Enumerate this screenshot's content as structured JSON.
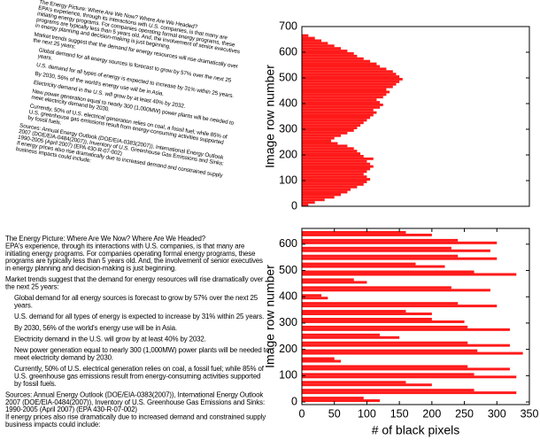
{
  "document": {
    "lines": [
      "The Energy Picture: Where Are We Now? Where Are We Headed?",
      "EPA's experience, through its interactions with U.S. companies, is that many are",
      "initiating energy programs. For companies operating formal energy programs, these",
      "programs are typically less than 5 years old. And, the involvement of senior executives",
      "in energy planning and decision-making is just beginning.",
      "Market trends suggest that the demand for energy resources will rise dramatically over",
      "the next 25 years:",
      "Global demand for all energy sources is forecast to grow by 57% over the next 25",
      "years.",
      "U.S. demand for all types of energy is expected to increase by 31% within 25 years.",
      "By 2030, 56% of the world's energy use will be in Asia.",
      "Electricity demand in the U.S. will grow by at least 40% by 2032.",
      "New power generation equal to nearly 300 (1,000MW) power plants will be needed to",
      "meet electricity demand by 2030.",
      "Currently, 50% of U.S. electrical generation relies on coal, a fossil fuel; while 85% of",
      "U.S. greenhouse gas emissions result from energy-consuming activities supported",
      "by fossil fuels.",
      "Sources: Annual Energy Outlook (DOE/EIA-0383(2007)), International Energy Outlook",
      "2007 (DOE/EIA-0484(2007)), Inventory of U.S. Greenhouse Gas Emissions and Sinks:",
      "1990-2005 (April 2007) (EPA 430-R-07-002)",
      "If energy prices also rise dramatically due to increased demand and constrained supply",
      "business impacts could include:"
    ]
  },
  "chart_data": [
    {
      "type": "barh",
      "ylabel": "Image row number",
      "color": "#ff1a1a",
      "rows": [
        0,
        10,
        20,
        30,
        40,
        50,
        60,
        70,
        80,
        90,
        100,
        110,
        120,
        130,
        140,
        150,
        160,
        170,
        180,
        190,
        200,
        210,
        220,
        230,
        240,
        250,
        260,
        270,
        280,
        290,
        300,
        310,
        320,
        330,
        340,
        350,
        360,
        370,
        380,
        390,
        400,
        410,
        420,
        430,
        440,
        450,
        460,
        470,
        480,
        490,
        500,
        510,
        520,
        530,
        540,
        550,
        560,
        570,
        580,
        590,
        600,
        610,
        620,
        630,
        640,
        650,
        660
      ],
      "values": [
        10,
        20,
        35,
        50,
        60,
        70,
        75,
        85,
        95,
        100,
        105,
        100,
        95,
        100,
        105,
        110,
        105,
        100,
        110,
        95,
        90,
        85,
        80,
        70,
        55,
        45,
        50,
        60,
        70,
        80,
        85,
        90,
        95,
        100,
        105,
        110,
        115,
        110,
        120,
        125,
        120,
        115,
        125,
        130,
        135,
        130,
        140,
        145,
        150,
        155,
        150,
        145,
        140,
        130,
        120,
        115,
        105,
        95,
        85,
        80,
        70,
        60,
        50,
        40,
        30,
        20,
        10
      ],
      "xlim": [
        0,
        350
      ],
      "ylim": [
        0,
        700
      ],
      "yticks": [
        0,
        100,
        200,
        300,
        400,
        500,
        600,
        700
      ]
    },
    {
      "type": "barh",
      "xlabel": "# of black pixels",
      "ylabel": "Image row number",
      "color": "#ff1a1a",
      "rows": [
        0,
        10,
        20,
        30,
        40,
        50,
        60,
        70,
        80,
        90,
        100,
        110,
        120,
        130,
        140,
        150,
        160,
        170,
        180,
        190,
        200,
        210,
        220,
        230,
        240,
        250,
        260,
        270,
        280,
        290,
        300,
        310,
        320,
        330,
        340,
        350,
        360,
        370,
        380,
        390,
        400,
        410,
        420,
        430,
        440,
        450,
        460,
        470,
        480,
        490,
        500,
        510,
        520,
        530,
        540,
        550,
        560,
        570,
        580,
        590,
        600,
        610,
        620,
        630,
        640,
        650
      ],
      "values": [
        120,
        95,
        0,
        330,
        265,
        0,
        200,
        160,
        0,
        330,
        265,
        0,
        320,
        255,
        0,
        60,
        50,
        0,
        340,
        270,
        0,
        320,
        255,
        0,
        150,
        120,
        0,
        320,
        255,
        0,
        250,
        200,
        0,
        200,
        160,
        0,
        300,
        240,
        0,
        40,
        30,
        0,
        290,
        230,
        0,
        100,
        80,
        0,
        330,
        265,
        0,
        220,
        175,
        0,
        300,
        240,
        0,
        290,
        230,
        0,
        300,
        240,
        0,
        200,
        160,
        0
      ],
      "xlim": [
        0,
        350
      ],
      "xticks": [
        0,
        50,
        100,
        150,
        200,
        250,
        300,
        350
      ],
      "ylim": [
        -10,
        660
      ],
      "yticks": [
        0,
        100,
        200,
        300,
        400,
        500,
        600
      ]
    }
  ]
}
